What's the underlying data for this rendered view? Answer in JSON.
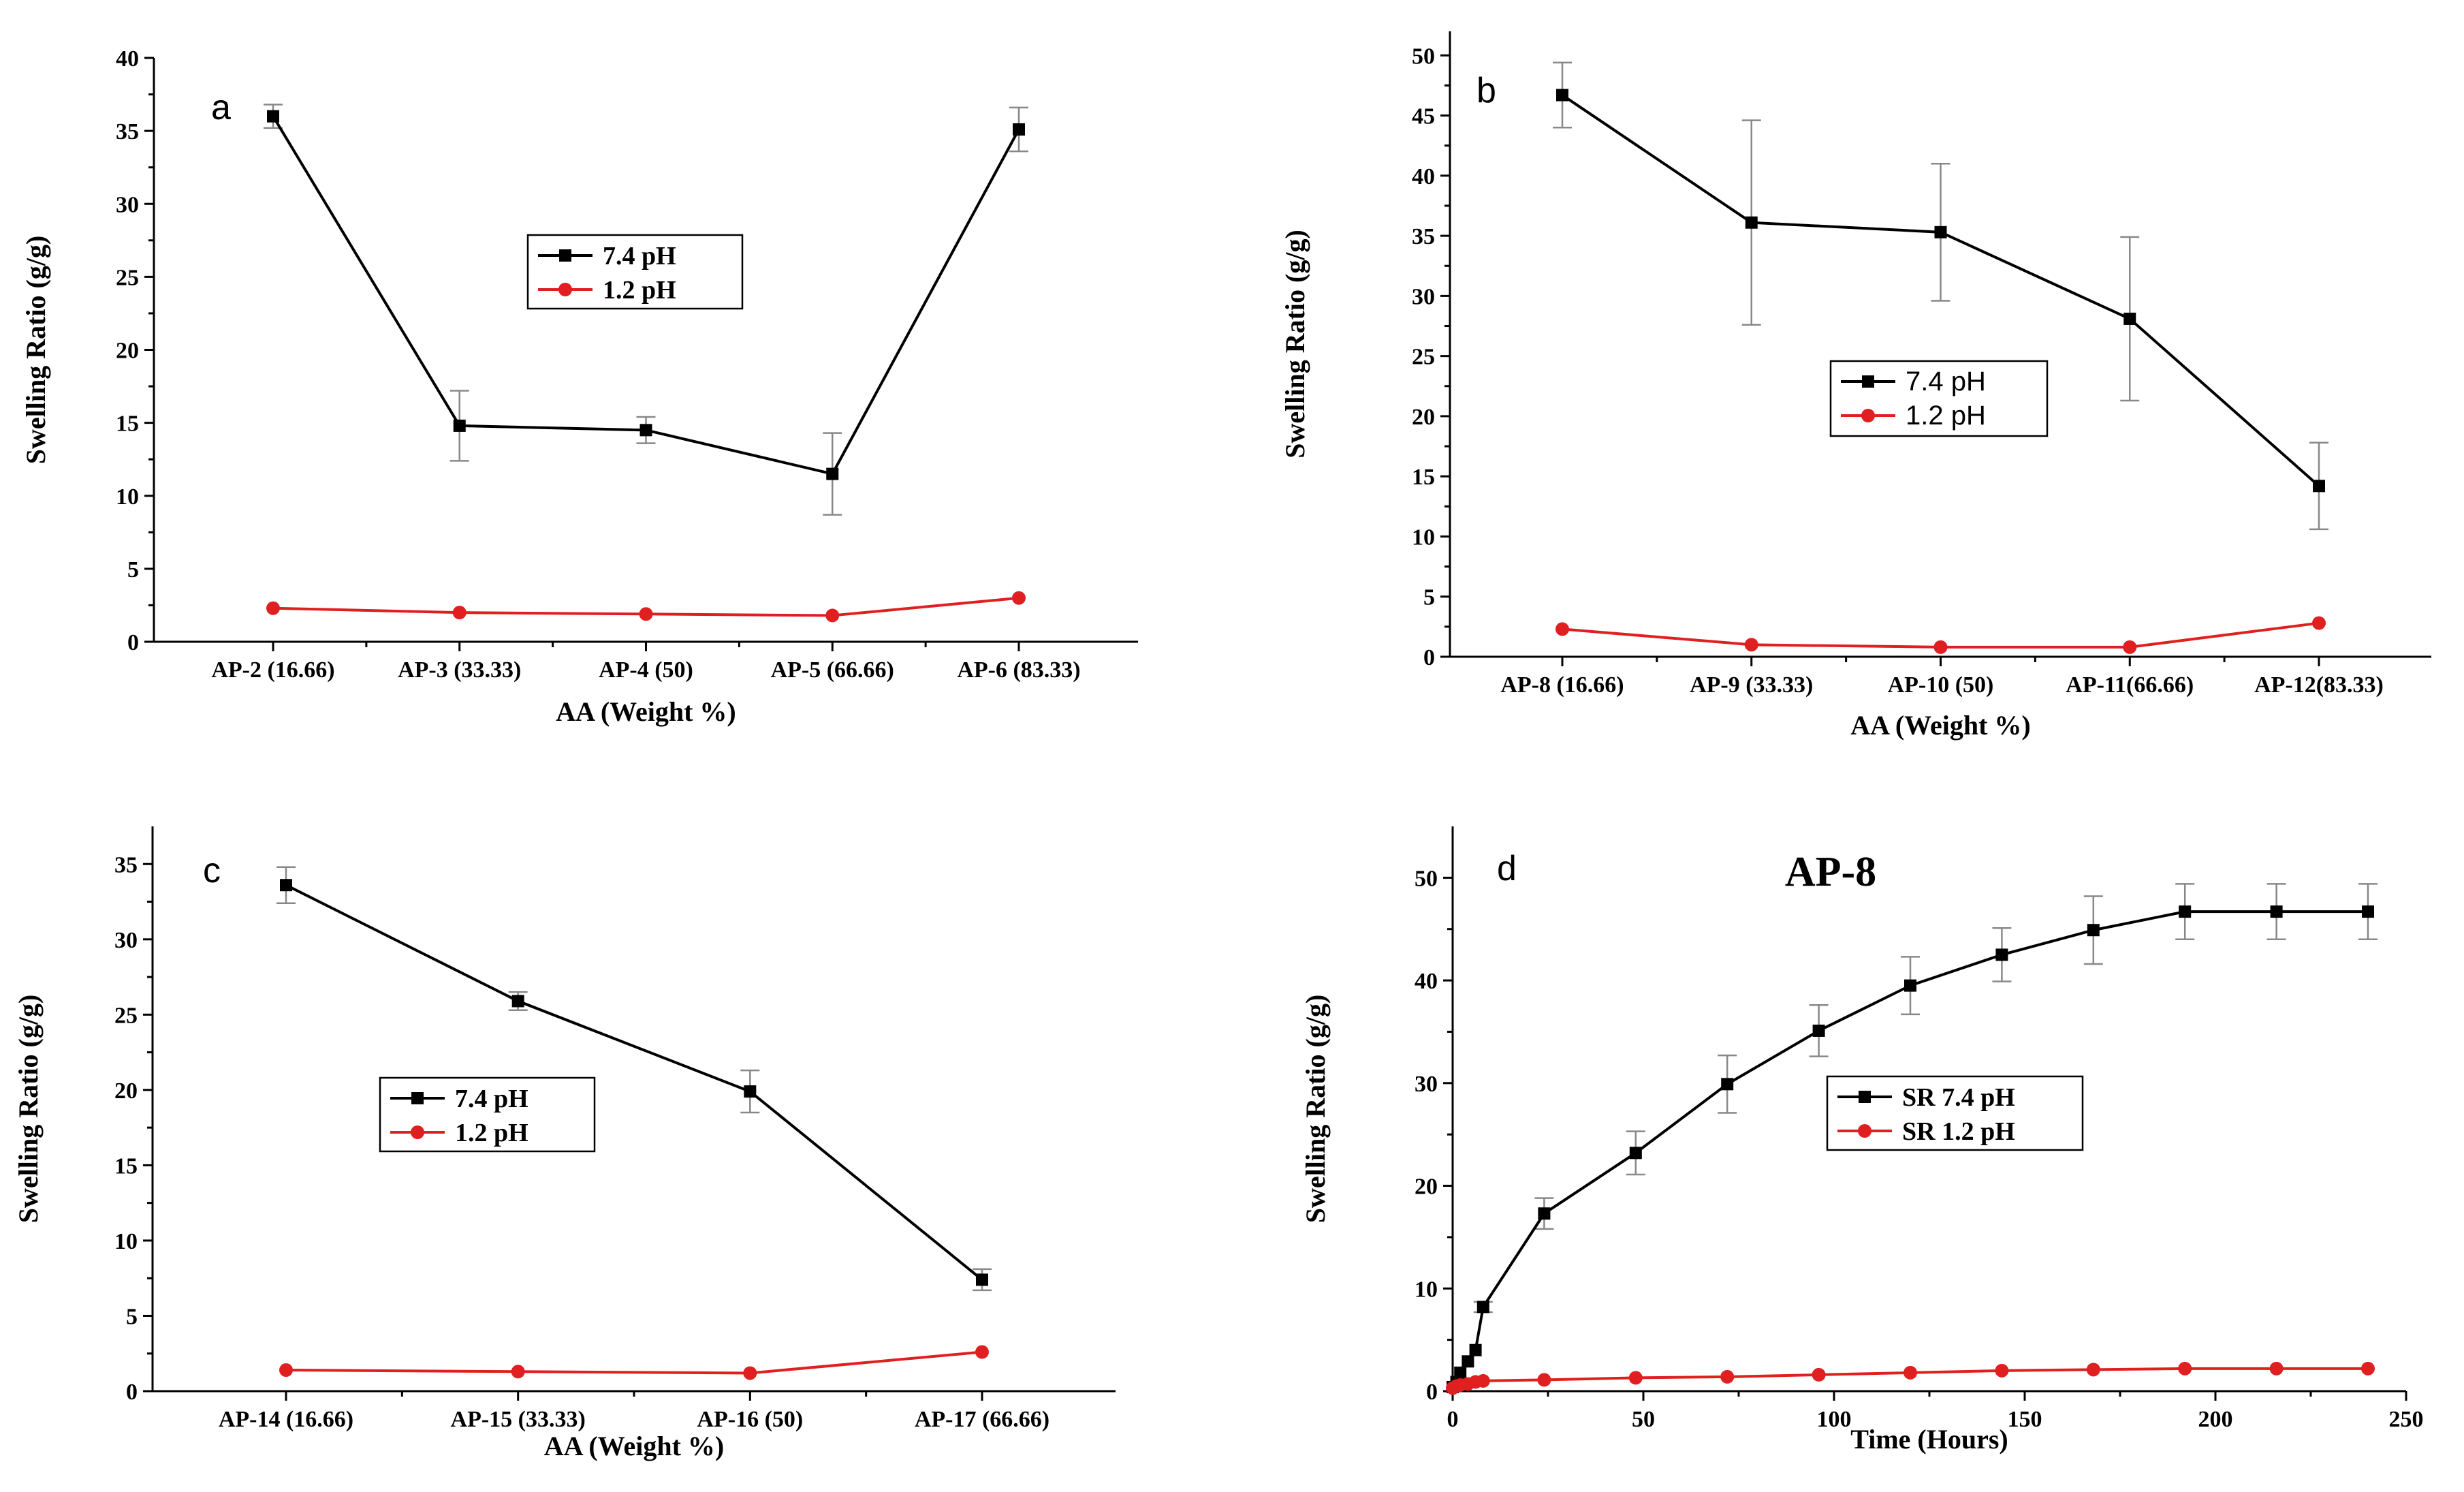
{
  "chart_data": [
    {
      "id": "a",
      "type": "line",
      "panel_label": "a",
      "categories": [
        "AP-2 (16.66)",
        "AP-3 (33.33)",
        "AP-4 (50)",
        "AP-5 (66.66)",
        "AP-6 (83.33)"
      ],
      "series": [
        {
          "name": "7.4 pH",
          "color": "#000000",
          "marker": "square",
          "values": [
            36.0,
            14.8,
            14.5,
            11.5,
            35.1
          ],
          "errors": [
            0.8,
            2.4,
            0.9,
            2.8,
            1.5
          ]
        },
        {
          "name": "1.2 pH",
          "color": "#e02020",
          "marker": "circle",
          "values": [
            2.3,
            2.0,
            1.9,
            1.8,
            3.0
          ]
        }
      ],
      "xlabel": "AA (Weight %)",
      "ylabel": "Swelling Ratio (g/g)",
      "ylim": [
        0,
        40
      ],
      "yticks": [
        0,
        5,
        10,
        15,
        20,
        25,
        30,
        35,
        40
      ],
      "legend": "center",
      "legend_style": "serif"
    },
    {
      "id": "b",
      "type": "line",
      "panel_label": "b",
      "categories": [
        "AP-8 (16.66)",
        "AP-9 (33.33)",
        "AP-10 (50)",
        "AP-11(66.66)",
        "AP-12(83.33)"
      ],
      "series": [
        {
          "name": "7.4 pH",
          "color": "#000000",
          "marker": "square",
          "values": [
            46.7,
            36.1,
            35.3,
            28.1,
            14.2
          ],
          "errors": [
            2.7,
            8.5,
            5.7,
            6.8,
            3.6
          ]
        },
        {
          "name": "1.2 pH",
          "color": "#e02020",
          "marker": "circle",
          "values": [
            2.3,
            1.0,
            0.8,
            0.8,
            2.8
          ]
        }
      ],
      "xlabel": "AA (Weight %)",
      "ylabel": "Swelling Ratio (g/g)",
      "ylim": [
        0,
        52
      ],
      "yticks": [
        0,
        5,
        10,
        15,
        20,
        25,
        30,
        35,
        40,
        45,
        50
      ],
      "legend": "center-right",
      "legend_style": "sans"
    },
    {
      "id": "c",
      "type": "line",
      "panel_label": "c",
      "categories": [
        "AP-14 (16.66)",
        "AP-15  (33.33)",
        "AP-16 (50)",
        "AP-17 (66.66)"
      ],
      "series": [
        {
          "name": "7.4 pH",
          "color": "#000000",
          "marker": "square",
          "values": [
            33.6,
            25.9,
            19.9,
            7.4
          ],
          "errors": [
            1.2,
            0.6,
            1.4,
            0.7
          ]
        },
        {
          "name": "1.2 pH",
          "color": "#e02020",
          "marker": "circle",
          "values": [
            1.4,
            1.3,
            1.2,
            2.6
          ]
        }
      ],
      "xlabel": "AA (Weight %)",
      "ylabel": "Swelling Ratio (g/g)",
      "ylim": [
        0,
        37.5
      ],
      "yticks": [
        0,
        5,
        10,
        15,
        20,
        25,
        30,
        35
      ],
      "legend": "center-left",
      "legend_style": "serif"
    },
    {
      "id": "d",
      "type": "line",
      "panel_label": "d",
      "title": "AP-8",
      "series": [
        {
          "name": "SR 7.4 pH",
          "color": "#000000",
          "marker": "square",
          "x": [
            0,
            1,
            2,
            4,
            6,
            8,
            24,
            48,
            72,
            96,
            120,
            144,
            168,
            192,
            216,
            240
          ],
          "y": [
            0.4,
            0.9,
            1.8,
            2.9,
            4.0,
            8.2,
            17.3,
            23.2,
            29.9,
            35.1,
            39.5,
            42.5,
            44.9,
            46.7,
            46.7,
            46.7
          ],
          "errors": [
            0,
            0,
            0,
            0,
            0,
            0.5,
            1.5,
            2.1,
            2.8,
            2.5,
            2.8,
            2.6,
            3.3,
            2.7,
            2.7,
            2.7
          ]
        },
        {
          "name": "SR 1.2 pH",
          "color": "#e02020",
          "marker": "circle",
          "x": [
            0,
            1,
            2,
            4,
            6,
            8,
            24,
            48,
            72,
            96,
            120,
            144,
            168,
            192,
            216,
            240
          ],
          "y": [
            0.3,
            0.5,
            0.6,
            0.7,
            0.9,
            1.0,
            1.1,
            1.3,
            1.4,
            1.6,
            1.8,
            2.0,
            2.1,
            2.2,
            2.2,
            2.2
          ]
        }
      ],
      "xlabel": "Time (Hours)",
      "ylabel": "Swelling Ratio (g/g)",
      "xlim": [
        0,
        250
      ],
      "xticks": [
        0,
        50,
        100,
        150,
        200,
        250
      ],
      "ylim": [
        0,
        55
      ],
      "yticks": [
        0,
        10,
        20,
        30,
        40,
        50
      ],
      "legend": "center-right",
      "legend_style": "serif"
    }
  ]
}
